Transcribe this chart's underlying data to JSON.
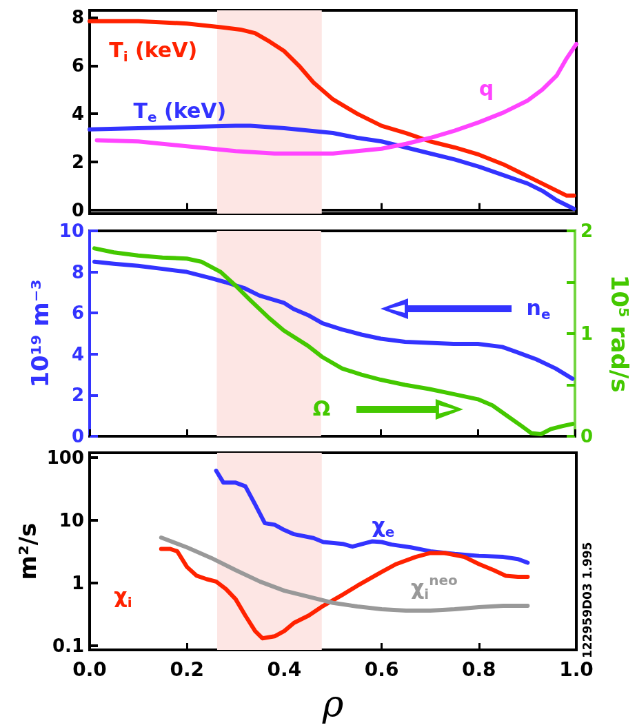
{
  "chart_data": [
    {
      "type": "line",
      "xlim": [
        0,
        1
      ],
      "xticks": [
        0,
        0.2,
        0.4,
        0.6,
        0.8,
        1
      ],
      "ylim": [
        -0.15,
        8.3
      ],
      "yticks": [
        0,
        2,
        4,
        6,
        8
      ],
      "tick_labels": "y",
      "legend": false,
      "marker": "none",
      "line_style": "solid",
      "bands": [
        {
          "axis": "x",
          "from": 0.262,
          "to": 0.477,
          "color": "#fde6e4"
        }
      ],
      "series": [
        {
          "name": "T$_{i}$ (keV)",
          "color": "#ff2200",
          "x": [
            0.0,
            0.1,
            0.2,
            0.27,
            0.31,
            0.34,
            0.37,
            0.4,
            0.43,
            0.46,
            0.5,
            0.55,
            0.6,
            0.65,
            0.7,
            0.75,
            0.8,
            0.85,
            0.9,
            0.95,
            0.98,
            0.995
          ],
          "values": [
            7.85,
            7.85,
            7.75,
            7.6,
            7.5,
            7.35,
            7.0,
            6.6,
            6.0,
            5.3,
            4.6,
            4.0,
            3.5,
            3.2,
            2.85,
            2.6,
            2.3,
            1.9,
            1.4,
            0.9,
            0.6,
            0.6
          ]
        },
        {
          "name": "T$_{e}$ (keV)",
          "color": "#3333ff",
          "x": [
            0.0,
            0.1,
            0.2,
            0.3,
            0.33,
            0.4,
            0.45,
            0.5,
            0.55,
            0.6,
            0.65,
            0.7,
            0.75,
            0.8,
            0.85,
            0.9,
            0.93,
            0.96,
            0.995
          ],
          "values": [
            3.35,
            3.4,
            3.45,
            3.5,
            3.5,
            3.4,
            3.3,
            3.2,
            3.0,
            2.85,
            2.6,
            2.35,
            2.1,
            1.8,
            1.45,
            1.1,
            0.8,
            0.4,
            0.05
          ]
        },
        {
          "name": "q",
          "color": "#ff44ff",
          "x": [
            0.015,
            0.1,
            0.2,
            0.3,
            0.38,
            0.45,
            0.5,
            0.55,
            0.6,
            0.65,
            0.7,
            0.75,
            0.8,
            0.85,
            0.9,
            0.93,
            0.96,
            0.98,
            1.0
          ],
          "values": [
            2.9,
            2.85,
            2.65,
            2.45,
            2.35,
            2.35,
            2.35,
            2.45,
            2.55,
            2.75,
            3.0,
            3.3,
            3.65,
            4.05,
            4.55,
            5.0,
            5.6,
            6.3,
            6.9
          ]
        }
      ]
    },
    {
      "type": "line",
      "xlim": [
        0,
        1
      ],
      "xticks": [
        0,
        0.2,
        0.4,
        0.6,
        0.8,
        1
      ],
      "ylim": [
        0,
        10
      ],
      "yticks": [
        0,
        2,
        4,
        6,
        8,
        10
      ],
      "y2lim": [
        0,
        2
      ],
      "y2ticks": [
        0,
        {
          "value": 0.5,
          "label": null
        },
        1,
        {
          "value": 1.5,
          "label": null
        },
        2
      ],
      "tick_labels": "y",
      "legend": false,
      "marker": "none",
      "line_style": "solid",
      "ylabel": "10¹⁹ m⁻³",
      "y2label": "10⁵ rad/s",
      "bands": [
        {
          "axis": "x",
          "from": 0.262,
          "to": 0.477,
          "color": "#fde6e4"
        }
      ],
      "series": [
        {
          "name": "n$_{e}$",
          "color": "#3333ff",
          "x": [
            0.01,
            0.05,
            0.1,
            0.15,
            0.2,
            0.25,
            0.28,
            0.32,
            0.35,
            0.4,
            0.42,
            0.45,
            0.48,
            0.52,
            0.56,
            0.6,
            0.65,
            0.7,
            0.75,
            0.8,
            0.85,
            0.88,
            0.92,
            0.96,
            0.995
          ],
          "values": [
            8.5,
            8.4,
            8.3,
            8.15,
            8.0,
            7.7,
            7.5,
            7.2,
            6.85,
            6.5,
            6.2,
            5.9,
            5.5,
            5.2,
            4.95,
            4.75,
            4.6,
            4.55,
            4.5,
            4.5,
            4.35,
            4.1,
            3.75,
            3.3,
            2.8
          ]
        },
        {
          "name": "Ω",
          "color": "#44c800",
          "axis": "y2",
          "x": [
            0.01,
            0.05,
            0.1,
            0.15,
            0.2,
            0.23,
            0.27,
            0.3,
            0.33,
            0.37,
            0.4,
            0.45,
            0.48,
            0.52,
            0.56,
            0.6,
            0.65,
            0.7,
            0.75,
            0.8,
            0.83,
            0.86,
            0.89,
            0.91,
            0.93,
            0.95,
            0.975,
            0.995
          ],
          "values": [
            1.83,
            1.79,
            1.76,
            1.74,
            1.73,
            1.7,
            1.6,
            1.47,
            1.33,
            1.15,
            1.03,
            0.88,
            0.77,
            0.66,
            0.6,
            0.55,
            0.5,
            0.46,
            0.41,
            0.36,
            0.3,
            0.2,
            0.1,
            0.03,
            0.02,
            0.07,
            0.1,
            0.12
          ]
        }
      ]
    },
    {
      "type": "line",
      "xlim": [
        0,
        1
      ],
      "xticks": [
        {
          "value": 0,
          "label": "0.0"
        },
        0.2,
        0.4,
        0.6,
        0.8,
        {
          "value": 1,
          "label": "1.0"
        }
      ],
      "ylim": [
        0.085,
        120
      ],
      "yticks": [
        0.1,
        1,
        10,
        100
      ],
      "log": "y",
      "legend": false,
      "marker": "none",
      "line_style": "solid",
      "xlabel": "ρ",
      "ylabel": "m²/s",
      "annotations": [
        "122959D03  1.995"
      ],
      "bands": [
        {
          "axis": "x",
          "from": 0.262,
          "to": 0.477,
          "color": "#fde6e4"
        }
      ],
      "series": [
        {
          "name": "χ$_{e}$",
          "color": "#3333ff",
          "x": [
            0.26,
            0.275,
            0.3,
            0.32,
            0.34,
            0.36,
            0.38,
            0.4,
            0.42,
            0.46,
            0.48,
            0.52,
            0.54,
            0.58,
            0.6,
            0.62,
            0.66,
            0.7,
            0.75,
            0.8,
            0.85,
            0.88,
            0.9
          ],
          "values": [
            62,
            40,
            40,
            35,
            18,
            9,
            8.5,
            7,
            6,
            5.2,
            4.5,
            4.2,
            3.8,
            4.6,
            4.5,
            4.1,
            3.7,
            3.2,
            2.9,
            2.7,
            2.6,
            2.4,
            2.1
          ]
        },
        {
          "name": "χ$_{i}$",
          "color": "#ff2200",
          "x": [
            0.147,
            0.165,
            0.18,
            0.2,
            0.22,
            0.24,
            0.26,
            0.28,
            0.3,
            0.32,
            0.34,
            0.355,
            0.38,
            0.4,
            0.42,
            0.45,
            0.48,
            0.52,
            0.55,
            0.6,
            0.63,
            0.67,
            0.7,
            0.73,
            0.77,
            0.8,
            0.83,
            0.855,
            0.88,
            0.9
          ],
          "values": [
            3.5,
            3.5,
            3.2,
            1.8,
            1.3,
            1.15,
            1.05,
            0.8,
            0.55,
            0.3,
            0.17,
            0.13,
            0.14,
            0.17,
            0.23,
            0.3,
            0.43,
            0.65,
            0.9,
            1.5,
            2.0,
            2.6,
            3.0,
            3.0,
            2.6,
            2.0,
            1.6,
            1.3,
            1.25,
            1.25
          ]
        },
        {
          "name": "χ$_{i}$$^{neo}$",
          "color": "#999999",
          "x": [
            0.147,
            0.2,
            0.25,
            0.3,
            0.35,
            0.4,
            0.45,
            0.5,
            0.55,
            0.6,
            0.65,
            0.7,
            0.75,
            0.8,
            0.85,
            0.9
          ],
          "values": [
            5.3,
            3.7,
            2.5,
            1.6,
            1.05,
            0.75,
            0.6,
            0.48,
            0.42,
            0.38,
            0.36,
            0.36,
            0.38,
            0.41,
            0.43,
            0.43
          ]
        }
      ]
    }
  ]
}
